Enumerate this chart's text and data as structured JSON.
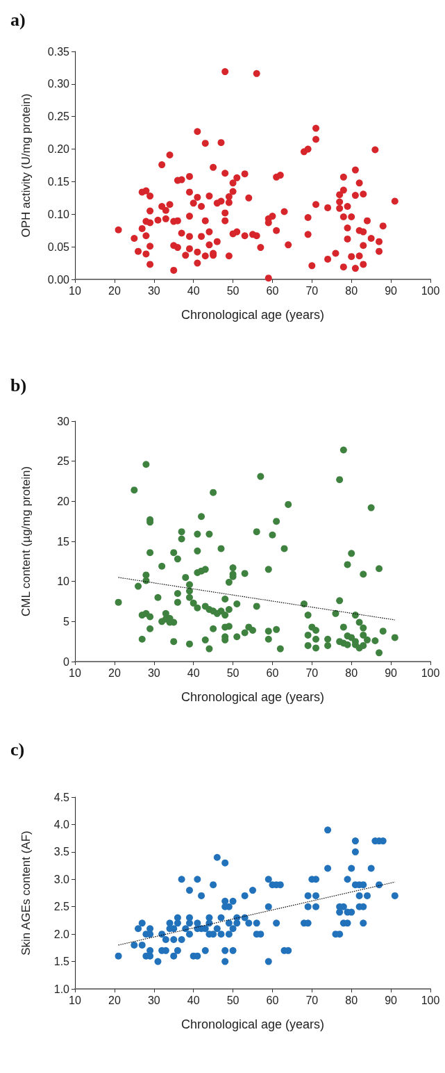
{
  "chart_data": [
    {
      "type": "scatter",
      "title": "a)",
      "xlabel": "Chronological age (years)",
      "ylabel": "OPH activity (U/mg protein)",
      "marker": "circle",
      "grid": false,
      "xlim": [
        10,
        100
      ],
      "xticks": [
        10,
        20,
        30,
        40,
        50,
        60,
        70,
        80,
        90,
        100
      ],
      "ylim": [
        0,
        0.35
      ],
      "yticks": [
        {
          "value": 0,
          "label": "0.00"
        },
        {
          "value": 0.05,
          "label": "0.05"
        },
        {
          "value": 0.1,
          "label": "0.10"
        },
        {
          "value": 0.15,
          "label": "0.15"
        },
        {
          "value": 0.2,
          "label": "0.20"
        },
        {
          "value": 0.25,
          "label": "0.25"
        },
        {
          "value": 0.3,
          "label": "0.30"
        },
        {
          "value": 0.35,
          "label": "0.35"
        }
      ],
      "series": [
        {
          "color": "#d7262b",
          "x": [
            48,
            56,
            41,
            43,
            47,
            34,
            32,
            45,
            48,
            53,
            39,
            36,
            37,
            51,
            50,
            27,
            28,
            29,
            39,
            41,
            44,
            50,
            49,
            40,
            42,
            46,
            47,
            49,
            54,
            32,
            34,
            33,
            29,
            48,
            39,
            48,
            43,
            31,
            33,
            35,
            36,
            28,
            29,
            27,
            21,
            25,
            28,
            29,
            26,
            28,
            29,
            35,
            37,
            39,
            42,
            44,
            35,
            36,
            39,
            44,
            46,
            38,
            41,
            43,
            45,
            45,
            41,
            49,
            50,
            51,
            53,
            55,
            56,
            57,
            59,
            59,
            60,
            59,
            61,
            62,
            63,
            61,
            64,
            68,
            69,
            71,
            71,
            69,
            69,
            70,
            71,
            74,
            74,
            76,
            77,
            77,
            77,
            78,
            78,
            78,
            78,
            79,
            79,
            79,
            80,
            80,
            81,
            81,
            81,
            82,
            82,
            82,
            83,
            83,
            83,
            83,
            84,
            85,
            86,
            87,
            87,
            88,
            91
          ],
          "values": [
            0.319,
            0.316,
            0.227,
            0.209,
            0.21,
            0.191,
            0.176,
            0.172,
            0.163,
            0.162,
            0.158,
            0.152,
            0.153,
            0.156,
            0.148,
            0.134,
            0.136,
            0.128,
            0.134,
            0.126,
            0.128,
            0.135,
            0.127,
            0.117,
            0.112,
            0.117,
            0.12,
            0.118,
            0.125,
            0.112,
            0.115,
            0.106,
            0.105,
            0.102,
            0.097,
            0.09,
            0.09,
            0.091,
            0.093,
            0.089,
            0.09,
            0.089,
            0.087,
            0.078,
            0.076,
            0.063,
            0.067,
            0.051,
            0.043,
            0.039,
            0.023,
            0.014,
            0.071,
            0.066,
            0.066,
            0.073,
            0.052,
            0.049,
            0.047,
            0.053,
            0.058,
            0.037,
            0.042,
            0.036,
            0.04,
            0.037,
            0.025,
            0.036,
            0.07,
            0.073,
            0.067,
            0.069,
            0.067,
            0.049,
            0.002,
            0.093,
            0.097,
            0.087,
            0.157,
            0.16,
            0.104,
            0.075,
            0.053,
            0.196,
            0.2,
            0.232,
            0.215,
            0.095,
            0.069,
            0.021,
            0.115,
            0.11,
            0.031,
            0.04,
            0.13,
            0.119,
            0.109,
            0.157,
            0.137,
            0.096,
            0.019,
            0.112,
            0.079,
            0.062,
            0.096,
            0.035,
            0.168,
            0.129,
            0.017,
            0.148,
            0.075,
            0.036,
            0.131,
            0.073,
            0.052,
            0.023,
            0.09,
            0.063,
            0.199,
            0.058,
            0.043,
            0.082,
            0.12
          ]
        }
      ]
    },
    {
      "type": "scatter",
      "title": "b)",
      "xlabel": "Chronological age (years)",
      "ylabel": "CML content (µg/mg protein)",
      "marker": "circle",
      "grid": false,
      "xlim": [
        10,
        100
      ],
      "xticks": [
        10,
        20,
        30,
        40,
        50,
        60,
        70,
        80,
        90,
        100
      ],
      "ylim": [
        0,
        30
      ],
      "yticks": [
        0,
        5,
        10,
        15,
        20,
        25,
        30
      ],
      "series": [
        {
          "color": "#3f8240",
          "x": [
            21,
            25,
            28,
            26,
            29,
            29,
            29,
            28,
            28,
            27,
            28,
            29,
            29,
            27,
            31,
            32,
            33,
            32,
            34,
            34,
            35,
            33,
            35,
            35,
            36,
            36,
            36,
            37,
            37,
            38,
            39,
            39,
            39,
            40,
            41,
            39,
            41,
            41,
            42,
            41,
            42,
            43,
            43,
            44,
            45,
            46,
            47,
            44,
            45,
            47,
            45,
            43,
            44,
            48,
            48,
            49,
            48,
            49,
            48,
            48,
            50,
            50,
            50,
            49,
            51,
            51,
            53,
            53,
            54,
            55,
            56,
            57,
            56,
            59,
            59,
            59,
            60,
            61,
            61,
            62,
            63,
            64,
            68,
            69,
            69,
            69,
            70,
            71,
            71,
            71,
            74,
            74,
            76,
            77,
            77,
            77,
            78,
            78,
            78,
            79,
            79,
            79,
            80,
            80,
            81,
            81,
            81,
            82,
            82,
            83,
            83,
            83,
            83,
            84,
            85,
            86,
            87,
            87,
            88,
            91
          ],
          "values": [
            7.4,
            21.4,
            24.6,
            9.4,
            17.7,
            17.4,
            13.6,
            10.8,
            10.1,
            5.8,
            6.0,
            5.6,
            4.1,
            2.8,
            8.0,
            11.9,
            6.0,
            5.0,
            5.4,
            4.9,
            4.9,
            5.3,
            2.5,
            13.6,
            12.8,
            8.5,
            7.4,
            16.2,
            15.3,
            10.5,
            9.6,
            8.8,
            8.0,
            7.3,
            6.7,
            2.2,
            15.9,
            13.8,
            18.1,
            11.1,
            11.3,
            11.5,
            6.9,
            6.5,
            6.3,
            6.0,
            6.3,
            15.9,
            21.1,
            14.1,
            4.1,
            2.7,
            1.6,
            7.8,
            5.8,
            6.5,
            4.3,
            4.4,
            3.1,
            2.7,
            11.7,
            10.9,
            10.6,
            9.9,
            7.2,
            3.1,
            11.0,
            3.6,
            4.3,
            3.9,
            16.2,
            23.1,
            6.9,
            11.5,
            3.8,
            2.8,
            15.8,
            17.5,
            4.0,
            1.6,
            14.1,
            19.6,
            7.2,
            5.8,
            3.3,
            2.0,
            4.3,
            3.9,
            2.8,
            1.7,
            2.8,
            2.0,
            6.0,
            22.7,
            7.6,
            2.5,
            26.4,
            4.3,
            2.3,
            12.1,
            3.2,
            2.1,
            13.5,
            3.0,
            5.8,
            2.5,
            2.1,
            4.9,
            1.7,
            10.9,
            4.2,
            3.3,
            2.0,
            2.7,
            19.2,
            2.6,
            11.6,
            1.1,
            3.8,
            3.0
          ]
        },
        {
          "type": "line",
          "color": "#000000",
          "line_style": "dotted",
          "marker": "none",
          "x": [
            21,
            91
          ],
          "values": [
            10.5,
            5.2
          ]
        }
      ]
    },
    {
      "type": "scatter",
      "title": "c)",
      "xlabel": "Chronological age (years)",
      "ylabel": "Skin AGEs content (AF)",
      "marker": "circle",
      "grid": false,
      "xlim": [
        10,
        100
      ],
      "xticks": [
        10,
        20,
        30,
        40,
        50,
        60,
        70,
        80,
        90,
        100
      ],
      "ylim": [
        1,
        4.5
      ],
      "yticks": [
        {
          "value": 1,
          "label": "1.0"
        },
        {
          "value": 1.5,
          "label": "1.5"
        },
        {
          "value": 2,
          "label": "2.0"
        },
        {
          "value": 2.5,
          "label": "2.5"
        },
        {
          "value": 3,
          "label": "3.0"
        },
        {
          "value": 3.5,
          "label": "3.5"
        },
        {
          "value": 4,
          "label": "4.0"
        },
        {
          "value": 4.5,
          "label": "4.5"
        }
      ],
      "series": [
        {
          "color": "#2272bb",
          "x": [
            21,
            25,
            26,
            27,
            27,
            28,
            29,
            29,
            28,
            29,
            29,
            31,
            32,
            33,
            32,
            33,
            34,
            34,
            35,
            35,
            35,
            36,
            36,
            36,
            37,
            37,
            38,
            39,
            39,
            39,
            39,
            40,
            41,
            41,
            41,
            41,
            42,
            42,
            43,
            43,
            44,
            44,
            44,
            45,
            45,
            46,
            46,
            47,
            47,
            48,
            48,
            48,
            48,
            48,
            49,
            49,
            49,
            50,
            50,
            50,
            51,
            51,
            53,
            53,
            54,
            55,
            56,
            56,
            57,
            59,
            59,
            59,
            60,
            61,
            62,
            61,
            63,
            64,
            68,
            69,
            69,
            69,
            70,
            71,
            71,
            71,
            74,
            74,
            76,
            77,
            77,
            77,
            78,
            78,
            79,
            79,
            79,
            80,
            80,
            81,
            81,
            81,
            82,
            82,
            82,
            83,
            83,
            83,
            84,
            85,
            86,
            87,
            88,
            87,
            91
          ],
          "values": [
            1.6,
            1.8,
            2.1,
            2.2,
            1.8,
            2.0,
            2.0,
            2.1,
            1.6,
            1.6,
            1.7,
            1.5,
            2.0,
            1.9,
            1.7,
            1.7,
            2.2,
            2.1,
            2.1,
            1.9,
            1.6,
            2.3,
            2.2,
            1.7,
            3.0,
            1.9,
            2.1,
            2.8,
            2.3,
            2.2,
            2.0,
            1.6,
            3.0,
            2.2,
            2.1,
            1.6,
            2.7,
            2.1,
            2.1,
            1.7,
            2.3,
            2.2,
            2.0,
            2.9,
            2.0,
            3.4,
            2.1,
            2.3,
            2.0,
            3.3,
            2.6,
            2.5,
            1.7,
            1.5,
            2.5,
            2.2,
            2.0,
            2.6,
            2.1,
            1.7,
            2.3,
            2.2,
            2.7,
            2.3,
            2.2,
            2.8,
            2.2,
            2.0,
            2.0,
            3.0,
            2.5,
            1.5,
            2.9,
            2.9,
            2.9,
            2.2,
            1.7,
            1.7,
            2.2,
            2.2,
            2.7,
            2.5,
            3.0,
            3.0,
            2.7,
            2.5,
            3.9,
            3.2,
            2.0,
            2.0,
            2.5,
            2.4,
            2.5,
            2.2,
            2.4,
            2.2,
            3.0,
            2.4,
            3.2,
            3.7,
            3.5,
            2.9,
            2.9,
            2.7,
            2.5,
            2.9,
            2.5,
            2.2,
            2.7,
            3.2,
            3.7,
            3.7,
            3.7,
            2.9,
            2.7
          ]
        },
        {
          "type": "line",
          "color": "#000000",
          "line_style": "dotted",
          "marker": "none",
          "x": [
            21,
            91
          ],
          "values": [
            1.8,
            2.95
          ]
        }
      ]
    }
  ]
}
